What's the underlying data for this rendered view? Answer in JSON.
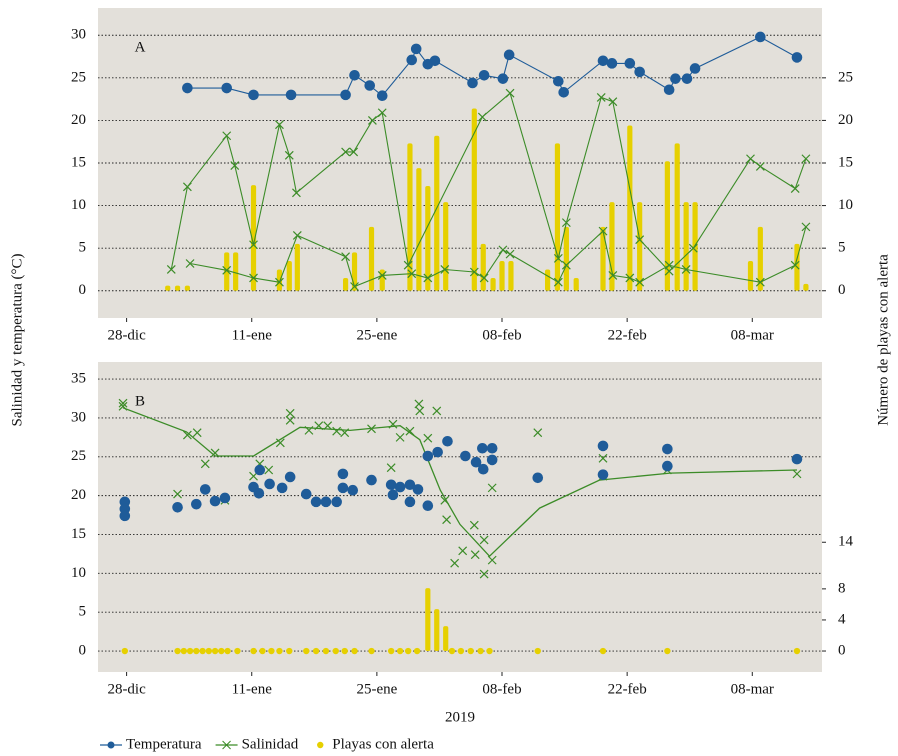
{
  "ylabel": "Salinidad y temperatura (°C)",
  "y2label": "Número de playas con alerta",
  "chart_data": [
    {
      "type": "combo",
      "label": "A",
      "xlim": [
        -3.2,
        77.8
      ],
      "xticks": [
        {
          "value": 0,
          "label": "28-dic"
        },
        {
          "value": 14,
          "label": "11-ene"
        },
        {
          "value": 28,
          "label": "25-ene"
        },
        {
          "value": 42,
          "label": "08-feb"
        },
        {
          "value": 56,
          "label": "22-feb"
        },
        {
          "value": 70,
          "label": "08-mar"
        }
      ],
      "ylim": [
        -3.2,
        33.2
      ],
      "yticks": [
        0,
        5,
        10,
        15,
        20,
        25,
        30
      ],
      "y2lim": [
        -3.2,
        33.2
      ],
      "y2ticks": [
        0,
        5,
        10,
        15,
        20,
        25
      ],
      "grid": true,
      "series": [
        {
          "name": "Temperatura",
          "color": "#1f5c99",
          "marker": "circle",
          "line": true,
          "x": [
            6.8,
            11.2,
            14.2,
            18.4,
            24.5,
            25.5,
            27.2,
            28.6,
            31.9,
            32.4,
            33.7,
            34.5,
            38.7,
            40.0,
            42.1,
            42.8,
            48.3,
            48.9,
            53.3,
            54.3,
            56.3,
            57.4,
            60.7,
            61.4,
            62.7,
            63.6,
            70.9,
            75.0
          ],
          "values": [
            23.8,
            23.8,
            23.0,
            23.0,
            23.0,
            25.3,
            24.1,
            22.9,
            27.1,
            28.4,
            26.6,
            27.0,
            24.4,
            25.3,
            24.9,
            27.7,
            24.6,
            23.3,
            27.0,
            26.7,
            26.7,
            25.7,
            23.6,
            24.9,
            24.9,
            26.1,
            29.8,
            27.4
          ]
        },
        {
          "name": "Salinidad",
          "color": "#3c8c28",
          "marker": "x",
          "line": true,
          "x": [
            5.0,
            6.8,
            11.2,
            12.1,
            14.2,
            17.1,
            18.2,
            19.0,
            24.5,
            25.4,
            27.5,
            28.6,
            31.5,
            39.8,
            42.9,
            48.3,
            49.2,
            53.1,
            54.4,
            57.4,
            60.7,
            63.4,
            69.8,
            70.9,
            74.8,
            76.0,
            null,
            7.1,
            11.2,
            14.2,
            17.1,
            19.1,
            24.5,
            25.5,
            28.6,
            31.9,
            33.7,
            35.6,
            38.9,
            40.0,
            42.1,
            42.9,
            48.3,
            49.2,
            53.3,
            54.4,
            56.3,
            57.4,
            60.7,
            62.6,
            70.9,
            74.8,
            76.0
          ],
          "values": [
            2.5,
            12.2,
            18.2,
            14.7,
            5.4,
            19.5,
            15.9,
            11.5,
            16.3,
            16.3,
            20.0,
            20.9,
            3.0,
            20.4,
            23.2,
            3.8,
            8.0,
            22.7,
            22.2,
            6.0,
            2.3,
            5.0,
            15.5,
            14.6,
            12.0,
            15.5,
            null,
            3.2,
            2.4,
            1.5,
            1.0,
            6.5,
            4.0,
            0.5,
            1.8,
            2.0,
            1.5,
            2.5,
            2.2,
            1.5,
            4.8,
            4.3,
            1.0,
            3.0,
            7.0,
            1.8,
            1.5,
            1.0,
            3.0,
            2.5,
            1.0,
            3.0,
            7.5
          ]
        },
        {
          "name": "Playas con alerta",
          "color": "#e6d000",
          "marker": "bar",
          "axis": "y2",
          "x": [
            4.6,
            5.7,
            6.8,
            11.2,
            12.2,
            14.2,
            17.1,
            18.2,
            19.1,
            24.5,
            25.5,
            27.4,
            28.6,
            31.7,
            32.7,
            33.7,
            34.7,
            35.7,
            38.9,
            39.9,
            41.0,
            42.0,
            43.0,
            47.1,
            48.2,
            49.2,
            50.3,
            53.3,
            54.3,
            56.3,
            57.4,
            60.5,
            61.6,
            62.6,
            63.6,
            69.8,
            70.9,
            75.0,
            76.0
          ],
          "values": [
            0.6,
            0.6,
            0.6,
            4.5,
            4.5,
            12.4,
            2.5,
            3.5,
            5.5,
            1.5,
            4.5,
            7.5,
            2.5,
            17.3,
            14.4,
            12.3,
            18.2,
            10.4,
            21.4,
            5.5,
            1.5,
            3.5,
            3.5,
            2.5,
            17.3,
            7.5,
            1.5,
            7.5,
            10.4,
            19.4,
            10.4,
            15.2,
            17.3,
            10.4,
            10.4,
            3.5,
            7.5,
            5.5,
            0.8
          ]
        }
      ]
    },
    {
      "type": "combo",
      "label": "B",
      "xlabel": "2019",
      "xlim": [
        -3.2,
        77.8
      ],
      "xticks": [
        {
          "value": 0,
          "label": "28-dic"
        },
        {
          "value": 14,
          "label": "11-ene"
        },
        {
          "value": 28,
          "label": "25-ene"
        },
        {
          "value": 42,
          "label": "08-feb"
        },
        {
          "value": 56,
          "label": "22-feb"
        },
        {
          "value": 70,
          "label": "08-mar"
        }
      ],
      "ylim": [
        -2.7,
        37.2
      ],
      "yticks": [
        0,
        5,
        10,
        15,
        20,
        25,
        30,
        35
      ],
      "y2lim": [
        -2.7,
        37.2
      ],
      "y2ticks": [
        0,
        4,
        8,
        14
      ],
      "grid": true,
      "series": [
        {
          "name": "Temperatura",
          "color": "#1f5c99",
          "marker": "circle",
          "line": false,
          "x": [
            -0.2,
            -0.2,
            -0.2,
            5.7,
            7.8,
            8.8,
            9.9,
            11.0,
            14.2,
            14.9,
            14.8,
            16.0,
            17.4,
            18.3,
            20.1,
            21.2,
            22.3,
            23.5,
            24.2,
            24.2,
            25.3,
            27.4,
            29.6,
            29.8,
            30.6,
            31.7,
            31.7,
            32.6,
            33.7,
            33.7,
            34.8,
            35.9,
            37.9,
            39.1,
            39.8,
            39.9,
            40.9,
            40.9,
            46.0,
            53.3,
            53.3,
            60.5,
            60.5,
            75.0
          ],
          "values": [
            19.2,
            18.3,
            17.4,
            18.5,
            18.9,
            20.8,
            19.3,
            19.7,
            21.1,
            23.3,
            20.3,
            21.5,
            21.0,
            22.4,
            20.2,
            19.2,
            19.2,
            19.2,
            22.8,
            21.0,
            20.7,
            22.0,
            21.4,
            20.1,
            21.1,
            21.4,
            19.2,
            20.8,
            18.7,
            25.1,
            25.6,
            27.0,
            25.1,
            24.3,
            26.1,
            23.4,
            24.6,
            26.1,
            22.3,
            26.4,
            22.7,
            26.0,
            23.8,
            24.7
          ]
        },
        {
          "name": "Salinidad",
          "color": "#3c8c28",
          "marker": "x",
          "line": false,
          "x": [
            -0.4,
            -0.4,
            5.7,
            6.8,
            7.9,
            8.8,
            9.9,
            11.0,
            14.2,
            14.9,
            15.9,
            17.2,
            18.3,
            18.3,
            20.4,
            21.5,
            22.5,
            23.5,
            24.4,
            27.4,
            29.6,
            29.8,
            30.6,
            31.7,
            32.7,
            32.8,
            33.7,
            34.7,
            35.6,
            35.8,
            36.7,
            37.6,
            38.9,
            39.0,
            40.0,
            40.0,
            40.9,
            40.9,
            46.0,
            53.3,
            53.3,
            60.5,
            75.0
          ],
          "values": [
            31.9,
            31.5,
            20.2,
            27.8,
            28.1,
            24.1,
            25.5,
            19.4,
            22.5,
            24.1,
            23.3,
            26.8,
            30.6,
            29.7,
            28.4,
            29.0,
            29.0,
            28.3,
            28.1,
            28.6,
            23.6,
            29.2,
            27.5,
            28.3,
            31.8,
            30.9,
            27.4,
            30.9,
            19.4,
            16.9,
            11.3,
            12.9,
            16.2,
            12.4,
            9.9,
            14.3,
            21.0,
            11.7,
            28.1,
            24.8,
            22.5,
            23.3,
            22.8
          ],
          "trend_x": [
            -0.4,
            6.7,
            9.9,
            14.2,
            19.4,
            25.0,
            30.6,
            32.8,
            35.1,
            37.3,
            40.6,
            46.2,
            52.9,
            60.8,
            75.0
          ],
          "trend_values": [
            31.3,
            28.2,
            25.1,
            25.1,
            28.8,
            28.4,
            29.0,
            27.2,
            20.7,
            16.3,
            12.2,
            18.4,
            22.0,
            22.9,
            23.3
          ]
        },
        {
          "name": "Playas con alerta",
          "color": "#e6d000",
          "marker": "bar",
          "axis": "y2",
          "x": [
            -0.2,
            5.7,
            6.4,
            7.1,
            7.8,
            8.5,
            9.2,
            9.9,
            10.6,
            11.3,
            12.4,
            14.2,
            15.2,
            16.2,
            17.1,
            18.2,
            20.1,
            21.2,
            22.3,
            23.4,
            24.4,
            25.5,
            27.4,
            29.6,
            30.6,
            31.5,
            32.5,
            33.7,
            34.7,
            35.7,
            36.4,
            37.4,
            38.5,
            39.6,
            40.6,
            46.0,
            53.3,
            60.5,
            75.0
          ],
          "values": [
            0,
            0,
            0,
            0,
            0,
            0,
            0,
            0,
            0,
            0,
            0,
            0,
            0,
            0,
            0,
            0,
            0,
            0,
            0,
            0,
            0,
            0,
            0,
            0,
            0,
            0,
            0,
            8.1,
            5.4,
            3.2,
            0,
            0,
            0,
            0,
            0,
            0,
            0,
            0,
            0
          ]
        }
      ]
    }
  ]
}
